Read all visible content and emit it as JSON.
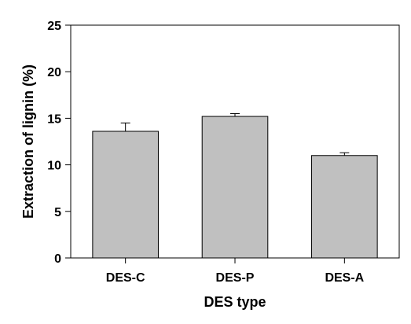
{
  "chart_data": {
    "type": "bar",
    "title": "",
    "xlabel": "DES type",
    "ylabel": "Extraction of lignin (%)",
    "categories": [
      "DES-C",
      "DES-P",
      "DES-A"
    ],
    "values": [
      13.6,
      15.2,
      11.0
    ],
    "error": [
      0.9,
      0.3,
      0.3
    ],
    "ylim": [
      0,
      25
    ],
    "yticks": [
      0,
      5,
      10,
      15,
      20,
      25
    ],
    "grid": false,
    "bar_color": "#c0c0c0",
    "edge_color": "#000000"
  }
}
